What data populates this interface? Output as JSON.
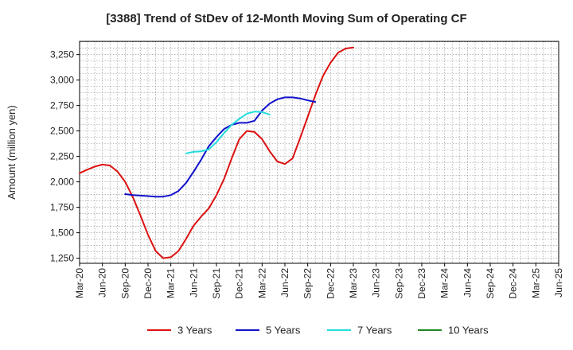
{
  "chart_data": {
    "type": "line",
    "title": "[3388]  Trend of StDev of 12-Month Moving Sum of Operating CF",
    "xlabel": "",
    "ylabel": "Amount (million yen)",
    "ylim": [
      1200,
      3380
    ],
    "yticks": [
      1250,
      1500,
      1750,
      2000,
      2250,
      2500,
      2750,
      3000,
      3250
    ],
    "ytick_labels": [
      "1,250",
      "1,500",
      "1,750",
      "2,000",
      "2,250",
      "2,500",
      "2,750",
      "3,000",
      "3,250"
    ],
    "xticks": [
      "Mar-20",
      "Jun-20",
      "Sep-20",
      "Dec-20",
      "Mar-21",
      "Jun-21",
      "Sep-21",
      "Dec-21",
      "Mar-22",
      "Jun-22",
      "Sep-22",
      "Dec-22",
      "Mar-23",
      "Jun-23",
      "Sep-23",
      "Dec-23",
      "Mar-24",
      "Jun-24",
      "Sep-24",
      "Dec-24",
      "Mar-25",
      "Jun-25"
    ],
    "grid": true,
    "legend_position": "bottom",
    "series": [
      {
        "name": "3 Years",
        "color": "#dd1111",
        "start_index": 0,
        "values": [
          2085,
          2120,
          2150,
          2170,
          2160,
          2100,
          2000,
          1850,
          1670,
          1480,
          1320,
          1250,
          1260,
          1320,
          1440,
          1570,
          1660,
          1740,
          1870,
          2030,
          2230,
          2420,
          2500,
          2490,
          2420,
          2300,
          2200,
          2175,
          2230,
          2430,
          2640,
          2850,
          3040,
          3170,
          3270,
          3310,
          3320
        ]
      },
      {
        "name": "5 Years",
        "color": "#1111cc",
        "start_index": 6,
        "values": [
          1880,
          1870,
          1865,
          1860,
          1855,
          1855,
          1870,
          1910,
          1990,
          2100,
          2220,
          2350,
          2440,
          2520,
          2560,
          2580,
          2580,
          2600,
          2700,
          2770,
          2810,
          2830,
          2830,
          2820,
          2800,
          2785
        ]
      },
      {
        "name": "7 Years",
        "color": "#22dddd",
        "start_index": 14,
        "values": [
          2280,
          2295,
          2300,
          2320,
          2390,
          2480,
          2560,
          2620,
          2670,
          2690,
          2685,
          2660
        ]
      },
      {
        "name": "10 Years",
        "color": "#228822",
        "start_index": 0,
        "values": []
      }
    ]
  }
}
